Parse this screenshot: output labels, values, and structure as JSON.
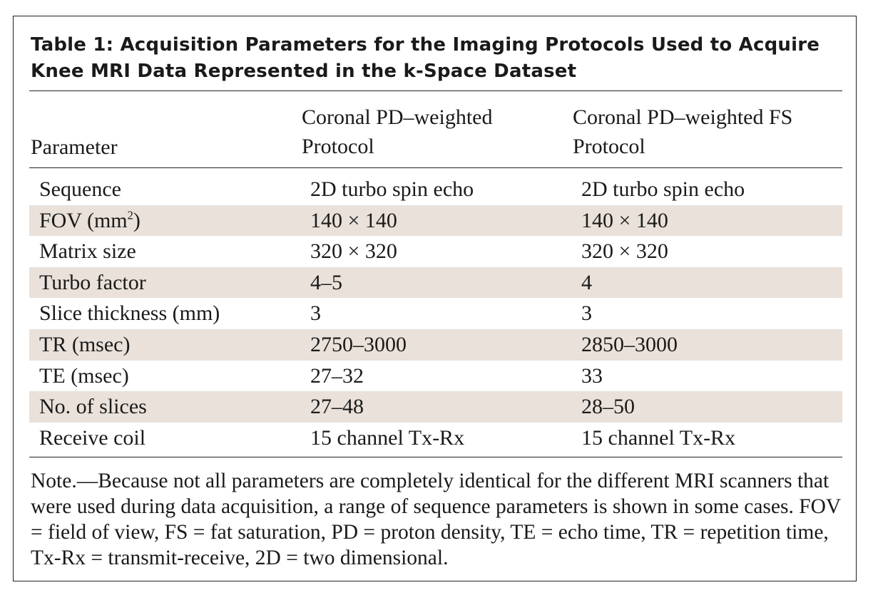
{
  "table": {
    "title": "Table 1: Acquisition Parameters for the Imaging Protocols Used to Acquire Knee MRI Data Represented in the k-Space Dataset",
    "headers": {
      "parameter": "Parameter",
      "pd_line1": "Coronal PD–weighted",
      "pd_line2": "Protocol",
      "fs_line1": "Coronal PD–weighted FS",
      "fs_line2": "Protocol"
    },
    "rows": [
      {
        "parameter": "Sequence",
        "pd": "2D turbo spin echo",
        "fs": "2D turbo spin echo"
      },
      {
        "parameter": "FOV (mm",
        "parameter_sup": "2",
        "parameter_end": ")",
        "pd": "140 × 140",
        "fs": "140 × 140"
      },
      {
        "parameter": "Matrix size",
        "pd": "320 × 320",
        "fs": "320 × 320"
      },
      {
        "parameter": "Turbo factor",
        "pd": "4–5",
        "fs": "4"
      },
      {
        "parameter": "Slice thickness (mm)",
        "pd": "3",
        "fs": "3"
      },
      {
        "parameter": "TR (msec)",
        "pd": "2750–3000",
        "fs": "2850–3000"
      },
      {
        "parameter": "TE (msec)",
        "pd": "27–32",
        "fs": "33"
      },
      {
        "parameter": "No. of slices",
        "pd": "27–48",
        "fs": "28–50"
      },
      {
        "parameter": "Receive coil",
        "pd": "15 channel Tx-Rx",
        "fs": "15 channel Tx-Rx"
      }
    ],
    "note": "Note.—Because not all parameters are completely identical for the different MRI scanners that were used during data acquisition, a range of sequence parameters is shown in some cases. FOV = field of view, FS = fat saturation, PD = proton density, TE = echo time, TR = repetition time, Tx-Rx = transmit-receive, 2D = two dimensional.",
    "colors": {
      "shaded_row": "#e9e1da",
      "text": "#1a1a1a",
      "rule": "#222222"
    }
  }
}
